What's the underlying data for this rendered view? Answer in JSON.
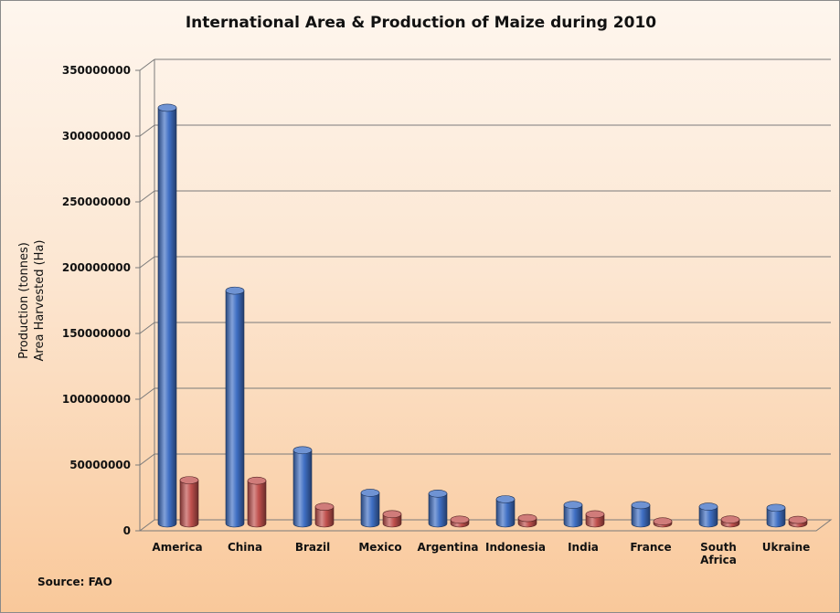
{
  "chart_data": {
    "type": "bar",
    "title": "International Area & Production of Maize during 2010",
    "ylabel_lines": [
      "Production (tonnes)",
      "Area Harvested (Ha)"
    ],
    "xlabel": "",
    "categories": [
      [
        "America"
      ],
      [
        "China"
      ],
      [
        "Brazil"
      ],
      [
        "Mexico"
      ],
      [
        "Argentina"
      ],
      [
        "Indonesia"
      ],
      [
        "India"
      ],
      [
        "France"
      ],
      [
        "South",
        "Africa"
      ],
      [
        "Ukraine"
      ]
    ],
    "series": [
      {
        "color": "#3f6fc4",
        "values": [
          316000000,
          177000000,
          55700000,
          23300000,
          22700000,
          18400000,
          14100000,
          13900000,
          12800000,
          11900000
        ]
      },
      {
        "color": "#c0504d",
        "values": [
          32900000,
          32500000,
          12700000,
          7100000,
          2900000,
          4100000,
          7000000,
          1600000,
          3000000,
          2700000
        ]
      }
    ],
    "ylim": [
      0,
      350000000
    ],
    "yticks": [
      "0",
      "50000000",
      "100000000",
      "150000000",
      "200000000",
      "250000000",
      "300000000",
      "350000000"
    ],
    "grid": true,
    "legend": "none",
    "three_d": true
  },
  "source_note": "Source: FAO"
}
